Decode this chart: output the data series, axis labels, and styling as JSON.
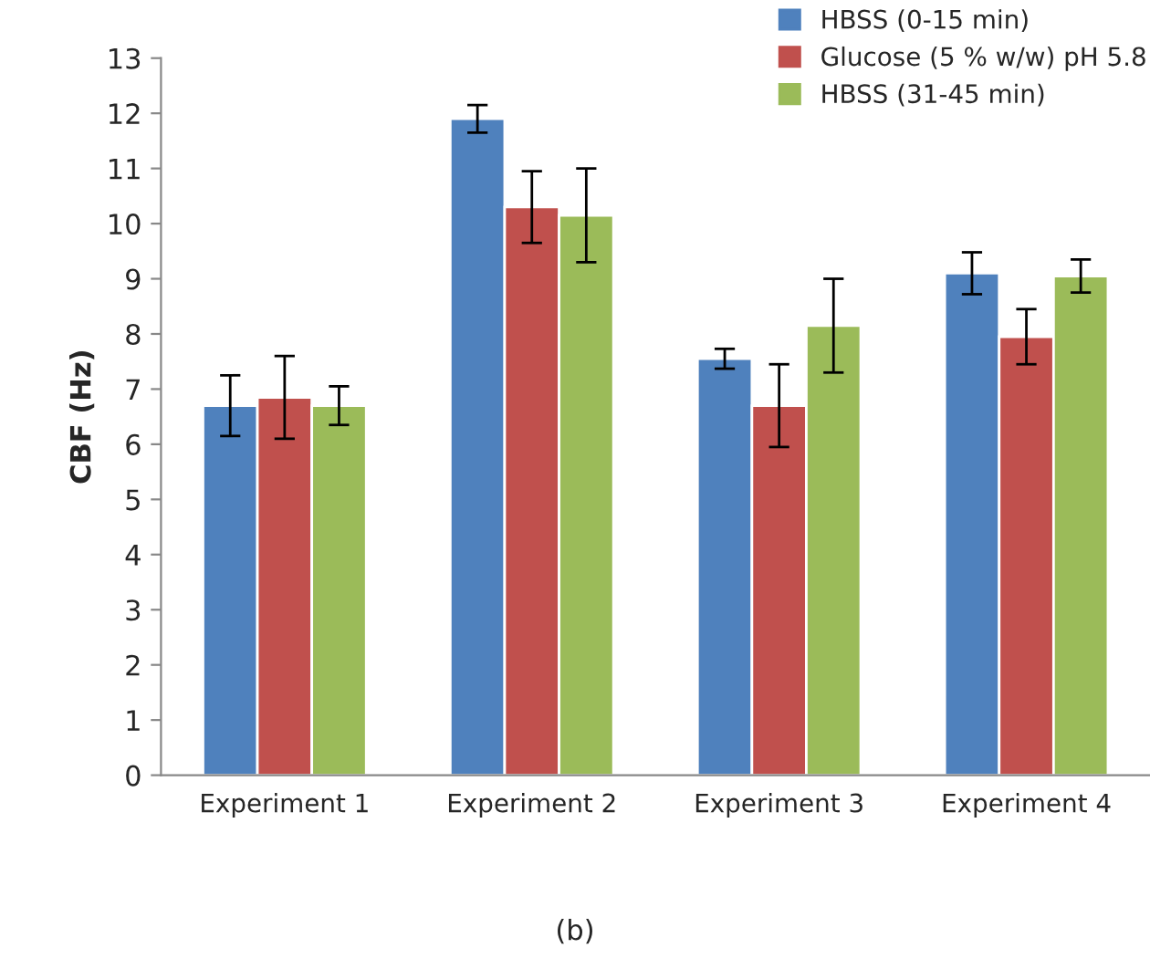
{
  "chart_data": {
    "type": "bar",
    "ylabel": "CBF (Hz)",
    "categories": [
      "Experiment 1",
      "Experiment 2",
      "Experiment 3",
      "Experiment 4"
    ],
    "series": [
      {
        "name": "HBSS (0-15 min)",
        "color": "#4f81bd",
        "values": [
          6.7,
          11.9,
          7.55,
          9.1
        ],
        "errors": [
          0.55,
          0.25,
          0.18,
          0.38
        ]
      },
      {
        "name": "Glucose (5 % w/w) pH 5.8",
        "color": "#c0504d",
        "values": [
          6.85,
          10.3,
          6.7,
          7.95
        ],
        "errors": [
          0.75,
          0.65,
          0.75,
          0.5
        ]
      },
      {
        "name": "HBSS (31-45 min)",
        "color": "#9bbb59",
        "values": [
          6.7,
          10.15,
          8.15,
          9.05
        ],
        "errors": [
          0.35,
          0.85,
          0.85,
          0.3
        ]
      }
    ],
    "ylim": [
      0,
      13
    ],
    "yticks": [
      0,
      1,
      2,
      3,
      4,
      5,
      6,
      7,
      8,
      9,
      10,
      11,
      12,
      13
    ],
    "grid": false,
    "legend": "top right",
    "annotations": [
      "(b)"
    ]
  }
}
